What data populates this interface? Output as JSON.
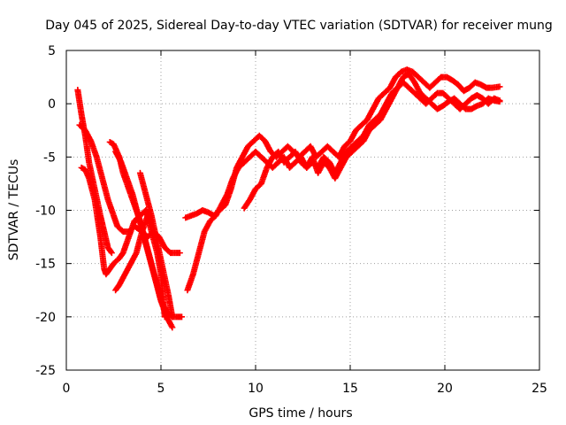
{
  "chart_data": {
    "type": "scatter",
    "title": "Day 045 of 2025, Sidereal Day-to-day VTEC variation (SDTVAR) for receiver mung",
    "xlabel": "GPS time / hours",
    "ylabel": "SDTVAR / TECUs",
    "xlim": [
      0,
      25
    ],
    "ylim": [
      -25,
      5
    ],
    "x_ticks": [
      0,
      5,
      10,
      15,
      20,
      25
    ],
    "y_ticks": [
      -25,
      -20,
      -15,
      -10,
      -5,
      0,
      5
    ],
    "x_tick_labels": [
      "0",
      "5",
      "10",
      "15",
      "20",
      "25"
    ],
    "y_tick_labels": [
      "-25",
      "-20",
      "-15",
      "-10",
      "-5",
      "0",
      "5"
    ],
    "grid": true,
    "marker": "+",
    "series_color": "#ff0000",
    "series": [
      {
        "x": [
          0.6,
          0.8,
          1.0,
          1.2,
          1.5,
          1.8,
          2.0,
          2.2,
          2.4
        ],
        "y": [
          1.3,
          -1.0,
          -3.0,
          -5.5,
          -8.0,
          -10.5,
          -12.0,
          -13.5,
          -14.0
        ]
      },
      {
        "x": [
          0.7,
          1.0,
          1.3,
          1.6,
          1.9,
          2.2,
          2.5,
          2.7,
          3.0,
          3.3,
          3.6,
          4.0,
          4.3,
          4.6,
          4.9,
          5.2,
          5.5,
          5.8,
          6.0
        ],
        "y": [
          -2.0,
          -2.5,
          -3.5,
          -5.0,
          -7.0,
          -9.0,
          -10.5,
          -11.5,
          -12.0,
          -12.0,
          -11.5,
          -12.0,
          -12.5,
          -12.0,
          -12.5,
          -13.5,
          -14.0,
          -14.0,
          -14.0
        ]
      },
      {
        "x": [
          0.8,
          1.0,
          1.2,
          1.5,
          1.8,
          2.0,
          2.1,
          2.3,
          2.5,
          2.8,
          3.0,
          3.3,
          3.6,
          3.9,
          4.2,
          4.5,
          4.8,
          5.0,
          5.2
        ],
        "y": [
          -6.0,
          -6.2,
          -7.0,
          -9.0,
          -12.5,
          -15.5,
          -16.0,
          -15.5,
          -15.0,
          -14.5,
          -14.0,
          -12.5,
          -11.0,
          -10.5,
          -10.0,
          -12.0,
          -14.0,
          -16.0,
          -20.0
        ]
      },
      {
        "x": [
          2.3,
          2.5,
          2.8,
          3.0,
          3.3,
          3.6,
          3.9,
          4.2,
          4.5,
          4.8,
          5.0,
          5.3,
          5.6,
          5.9,
          6.1
        ],
        "y": [
          -3.6,
          -3.8,
          -5.0,
          -6.5,
          -8.0,
          -9.5,
          -11.0,
          -13.0,
          -15.0,
          -17.0,
          -18.5,
          -19.5,
          -20.0,
          -20.0,
          -20.0
        ]
      },
      {
        "x": [
          2.6,
          2.9,
          3.2,
          3.5,
          3.8,
          4.1,
          4.4,
          4.7,
          5.0,
          5.3,
          5.6
        ],
        "y": [
          -4.5,
          -5.5,
          -7.0,
          -8.5,
          -10.5,
          -12.5,
          -14.5,
          -16.5,
          -18.5,
          -20.0,
          -21.0
        ]
      },
      {
        "x": [
          2.6,
          2.8,
          3.1,
          3.4,
          3.7,
          4.0,
          4.3
        ],
        "y": [
          -17.5,
          -17.0,
          -16.0,
          -15.0,
          -14.0,
          -12.0,
          -10.5
        ]
      },
      {
        "x": [
          3.9,
          4.2,
          4.5,
          4.8,
          5.1,
          5.4,
          5.6
        ],
        "y": [
          -6.5,
          -8.5,
          -10.5,
          -13.0,
          -15.5,
          -18.0,
          -20.0
        ]
      },
      {
        "x": [
          6.3,
          6.6,
          6.9,
          7.2,
          7.5,
          7.8,
          8.1,
          8.4,
          8.7,
          9.0,
          9.3,
          9.6,
          9.9,
          10.2,
          10.5,
          10.8,
          11.1,
          11.4,
          11.7,
          12.0,
          12.3,
          12.6,
          12.9,
          13.2,
          13.5,
          13.8,
          14.1,
          14.4,
          14.7,
          15.0,
          15.3,
          15.6,
          15.9,
          16.2,
          16.5,
          16.8,
          17.1,
          17.4,
          17.7,
          18.0,
          18.3,
          18.6,
          18.9,
          19.2,
          19.5,
          19.8,
          20.1,
          20.4,
          20.7,
          21.0,
          21.3,
          21.6,
          21.9,
          22.2,
          22.5,
          22.9
        ],
        "y": [
          -10.7,
          -10.5,
          -10.3,
          -10.0,
          -10.2,
          -10.5,
          -10.0,
          -9.5,
          -8.0,
          -6.0,
          -5.0,
          -4.0,
          -3.5,
          -3.0,
          -3.5,
          -4.5,
          -5.0,
          -4.5,
          -4.0,
          -4.5,
          -5.0,
          -4.5,
          -4.0,
          -5.0,
          -4.5,
          -4.0,
          -4.5,
          -5.0,
          -4.0,
          -3.5,
          -2.5,
          -2.0,
          -1.5,
          -0.5,
          0.5,
          1.0,
          1.5,
          2.5,
          3.0,
          3.2,
          3.0,
          2.5,
          2.0,
          1.5,
          2.0,
          2.5,
          2.5,
          2.2,
          1.8,
          1.2,
          1.5,
          2.0,
          1.8,
          1.5,
          1.5,
          1.6
        ]
      },
      {
        "x": [
          6.4,
          6.7,
          7.0,
          7.3,
          7.6,
          7.9,
          8.2,
          8.5,
          8.8,
          9.1,
          9.4,
          9.7,
          10.0,
          10.3,
          10.6,
          10.9,
          11.2,
          11.5,
          11.8,
          12.1,
          12.4,
          12.7,
          13.0,
          13.3,
          13.6,
          13.9,
          14.2,
          14.5,
          14.8,
          15.1,
          15.4,
          15.7,
          16.0,
          16.3,
          16.6,
          16.9,
          17.2,
          17.5,
          17.8,
          18.1,
          18.4,
          18.7,
          19.0,
          19.3,
          19.6,
          19.9,
          20.2,
          20.5,
          20.8,
          21.1,
          21.4,
          21.7,
          22.0,
          22.3,
          22.6,
          22.9
        ],
        "y": [
          -17.5,
          -16.0,
          -14.0,
          -12.0,
          -11.0,
          -10.5,
          -9.5,
          -8.5,
          -7.0,
          -6.0,
          -5.5,
          -5.0,
          -4.5,
          -5.0,
          -5.5,
          -6.0,
          -5.5,
          -5.0,
          -6.0,
          -5.5,
          -5.0,
          -6.0,
          -5.5,
          -6.0,
          -5.0,
          -5.5,
          -6.5,
          -5.5,
          -4.5,
          -4.0,
          -3.5,
          -3.0,
          -2.0,
          -1.5,
          -1.0,
          0.0,
          1.0,
          1.5,
          2.0,
          1.5,
          1.0,
          0.5,
          0.0,
          0.5,
          1.0,
          1.0,
          0.5,
          0.0,
          -0.5,
          0.0,
          0.5,
          0.8,
          0.5,
          0.0,
          0.5,
          0.3
        ]
      },
      {
        "x": [
          9.4,
          9.7,
          10.0,
          10.3,
          10.6,
          10.9,
          11.2,
          11.5,
          11.8,
          12.1,
          12.4,
          12.7,
          13.0,
          13.3,
          13.6,
          13.9,
          14.2,
          14.5,
          14.8,
          15.1,
          15.4,
          15.7,
          16.0,
          16.3,
          16.6,
          16.9,
          17.2,
          17.5,
          17.8,
          18.1,
          18.4,
          18.7,
          19.0,
          19.3,
          19.6,
          19.9,
          20.2,
          20.5,
          20.8,
          21.1,
          21.4,
          21.7,
          22.0,
          22.3,
          22.6,
          22.9
        ],
        "y": [
          -9.8,
          -9.0,
          -8.0,
          -7.5,
          -6.0,
          -5.0,
          -4.5,
          -5.5,
          -5.0,
          -4.5,
          -5.5,
          -6.0,
          -5.0,
          -6.5,
          -5.5,
          -6.0,
          -7.0,
          -6.0,
          -5.0,
          -4.5,
          -4.0,
          -3.5,
          -2.5,
          -2.0,
          -1.5,
          -0.5,
          0.5,
          1.5,
          2.5,
          2.8,
          2.0,
          1.0,
          0.5,
          0.0,
          -0.5,
          -0.2,
          0.2,
          0.5,
          0.0,
          -0.5,
          -0.5,
          -0.2,
          0.0,
          0.5,
          0.3,
          0.2
        ]
      }
    ]
  }
}
